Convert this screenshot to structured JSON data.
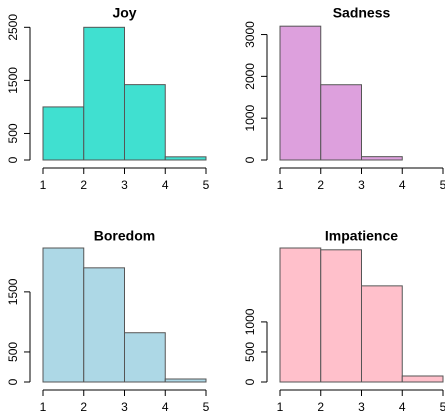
{
  "chart_data": [
    {
      "type": "histogram",
      "title": "Joy",
      "bins": [
        1,
        2,
        3,
        4,
        5
      ],
      "values": [
        1000,
        2500,
        1420,
        60
      ],
      "color": "#40e0d0",
      "xlim": [
        1,
        5
      ],
      "xticks": [
        1,
        2,
        3,
        4,
        5
      ],
      "ylim": [
        0,
        2600
      ],
      "yticks": [
        0,
        500,
        1500,
        2500
      ]
    },
    {
      "type": "histogram",
      "title": "Sadness",
      "bins": [
        1,
        2,
        3,
        4,
        5
      ],
      "values": [
        3200,
        1800,
        80,
        0
      ],
      "color": "#dda0dd",
      "xlim": [
        1,
        5
      ],
      "xticks": [
        1,
        2,
        3,
        4,
        5
      ],
      "ylim": [
        0,
        3300
      ],
      "yticks": [
        0,
        1000,
        2000,
        3000
      ]
    },
    {
      "type": "histogram",
      "title": "Boredom",
      "bins": [
        1,
        2,
        3,
        4,
        5
      ],
      "values": [
        2230,
        1900,
        820,
        50
      ],
      "color": "#add8e6",
      "xlim": [
        1,
        5
      ],
      "xticks": [
        1,
        2,
        3,
        4,
        5
      ],
      "ylim": [
        0,
        2280
      ],
      "yticks": [
        0,
        500,
        1500
      ]
    },
    {
      "type": "histogram",
      "title": "Impatience",
      "bins": [
        1,
        2,
        3,
        4,
        5
      ],
      "values": [
        2230,
        2200,
        1600,
        100
      ],
      "color": "#ffc0cb",
      "xlim": [
        1,
        5
      ],
      "xticks": [
        1,
        2,
        3,
        4,
        5
      ],
      "ylim": [
        0,
        2280
      ],
      "yticks": [
        0,
        500,
        1000
      ]
    }
  ]
}
